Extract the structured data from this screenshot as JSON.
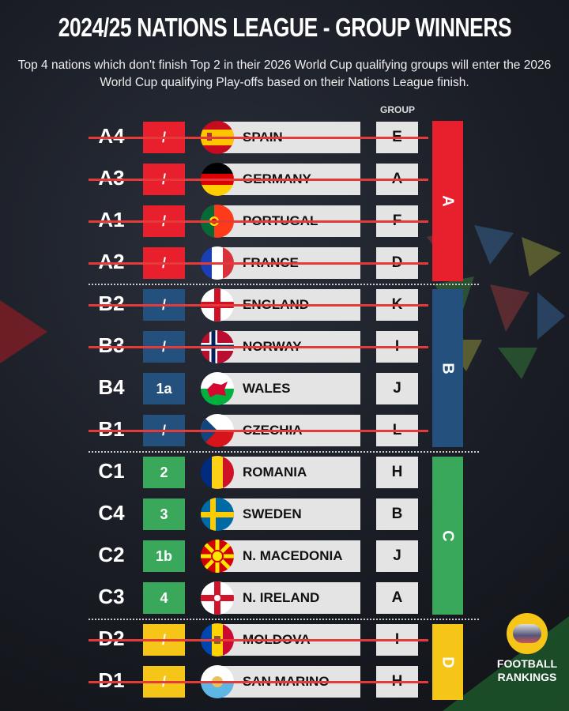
{
  "header": {
    "title": "2024/25 NATIONS LEAGUE - GROUP WINNERS",
    "subtitle": "Top 4 nations which don't finish Top 2 in their 2026 World Cup qualifying groups will enter the 2026 World Cup qualifying Play-offs based on their Nations League finish.",
    "group_column_label": "GROUP"
  },
  "colors": {
    "A": "#e8202e",
    "B": "#24507d",
    "C": "#3aa85a",
    "D": "#f5c518",
    "strike": "#e53a3a"
  },
  "sections": [
    {
      "label": "A",
      "color": "#e8202e"
    },
    {
      "label": "B",
      "color": "#24507d"
    },
    {
      "label": "C",
      "color": "#3aa85a"
    },
    {
      "label": "D",
      "color": "#f5c518"
    }
  ],
  "rows": [
    {
      "rank": "A4",
      "position": "/",
      "country": "SPAIN",
      "group": "E",
      "league": "A",
      "struck": true,
      "flag": "spain"
    },
    {
      "rank": "A3",
      "position": "/",
      "country": "GERMANY",
      "group": "A",
      "league": "A",
      "struck": true,
      "flag": "germany"
    },
    {
      "rank": "A1",
      "position": "/",
      "country": "PORTUGAL",
      "group": "F",
      "league": "A",
      "struck": true,
      "flag": "portugal"
    },
    {
      "rank": "A2",
      "position": "/",
      "country": "FRANCE",
      "group": "D",
      "league": "A",
      "struck": true,
      "flag": "france"
    },
    {
      "rank": "B2",
      "position": "/",
      "country": "ENGLAND",
      "group": "K",
      "league": "B",
      "struck": true,
      "flag": "england"
    },
    {
      "rank": "B3",
      "position": "/",
      "country": "NORWAY",
      "group": "I",
      "league": "B",
      "struck": true,
      "flag": "norway"
    },
    {
      "rank": "B4",
      "position": "1a",
      "country": "WALES",
      "group": "J",
      "league": "B",
      "struck": false,
      "flag": "wales"
    },
    {
      "rank": "B1",
      "position": "/",
      "country": "CZECHIA",
      "group": "L",
      "league": "B",
      "struck": true,
      "flag": "czechia"
    },
    {
      "rank": "C1",
      "position": "2",
      "country": "ROMANIA",
      "group": "H",
      "league": "C",
      "struck": false,
      "flag": "romania"
    },
    {
      "rank": "C4",
      "position": "3",
      "country": "SWEDEN",
      "group": "B",
      "league": "C",
      "struck": false,
      "flag": "sweden"
    },
    {
      "rank": "C2",
      "position": "1b",
      "country": "N. MACEDONIA",
      "group": "J",
      "league": "C",
      "struck": false,
      "flag": "north-macedonia"
    },
    {
      "rank": "C3",
      "position": "4",
      "country": "N. IRELAND",
      "group": "A",
      "league": "C",
      "struck": false,
      "flag": "northern-ireland"
    },
    {
      "rank": "D2",
      "position": "/",
      "country": "MOLDOVA",
      "group": "I",
      "league": "D",
      "struck": true,
      "flag": "moldova"
    },
    {
      "rank": "D1",
      "position": "/",
      "country": "SAN MARINO",
      "group": "H",
      "league": "D",
      "struck": true,
      "flag": "san-marino"
    }
  ],
  "branding": {
    "line1": "FOOTBALL",
    "line2": "RANKINGS"
  }
}
